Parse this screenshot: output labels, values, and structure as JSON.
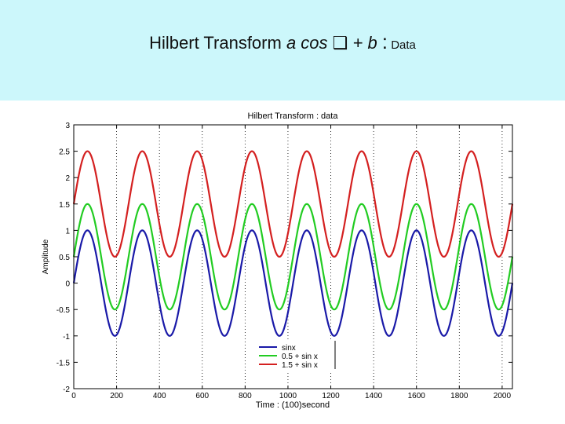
{
  "slide": {
    "title_prefix": "Hilbert Transform ",
    "title_expr_a": "a cos ",
    "title_symbol": "❑",
    "title_expr_b": " + b ",
    "title_colon": ":",
    "title_suffix": " Data"
  },
  "chart_data": {
    "type": "line",
    "title": "Hilbert Transform : data",
    "xlabel": "Time : (100)second",
    "ylabel": "Amplitude",
    "xlim": [
      0,
      2048
    ],
    "ylim": [
      -2,
      3
    ],
    "xticks": [
      0,
      200,
      400,
      600,
      800,
      1000,
      1200,
      1400,
      1600,
      1800,
      2000
    ],
    "xtick_labels": [
      "0",
      "200",
      "400",
      "600",
      "800",
      "1000",
      "1200",
      "1400",
      "1600",
      "1800",
      "2000"
    ],
    "yticks": [
      3,
      2.5,
      2,
      1.5,
      1,
      0.5,
      0,
      -0.5,
      -1,
      -1.5,
      -2
    ],
    "ytick_labels": [
      "3",
      "2.5",
      "2",
      "1.5",
      "1",
      "0.5",
      "0",
      "-0.5",
      "-1",
      "-1.5",
      "-2"
    ],
    "grid": "x-dotted",
    "legend_position": "bottom-right",
    "period": 256,
    "phase_offset": 0,
    "amplitude": 1,
    "series": [
      {
        "name": "sinx",
        "offset": 0,
        "color": "#1a1aa8"
      },
      {
        "name": "0.5 + sin x",
        "offset": 0.5,
        "color": "#22cc22"
      },
      {
        "name": "1.5 + sin x",
        "offset": 1.5,
        "color": "#d42020"
      }
    ]
  }
}
